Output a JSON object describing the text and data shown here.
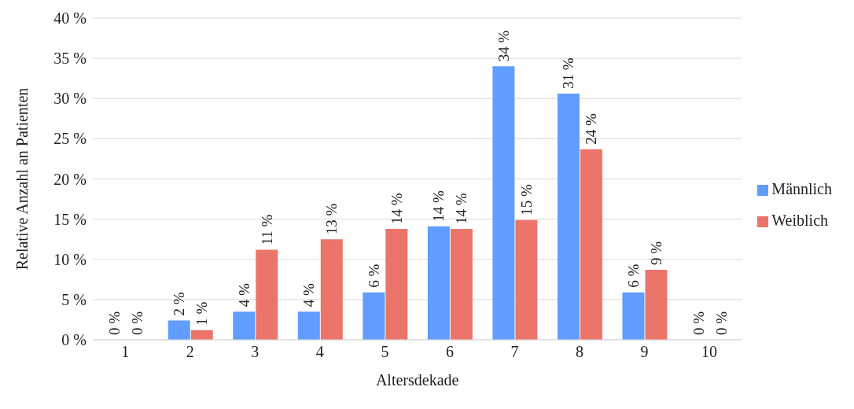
{
  "chart_data": {
    "type": "bar",
    "xlabel": "Altersdekade",
    "ylabel": "Relative Anzahl an Patienten",
    "categories": [
      "1",
      "2",
      "3",
      "4",
      "5",
      "6",
      "7",
      "8",
      "9",
      "10"
    ],
    "series": [
      {
        "name": "Männlich",
        "color": "#619cff",
        "values": [
          0,
          2.4,
          3.5,
          3.5,
          5.9,
          14.1,
          34.0,
          30.6,
          5.9,
          0
        ],
        "value_labels": [
          "0 %",
          "2 %",
          "4 %",
          "4 %",
          "6 %",
          "14 %",
          "34 %",
          "31 %",
          "6 %",
          "0 %"
        ]
      },
      {
        "name": "Weiblich",
        "color": "#ec756b",
        "values": [
          0,
          1.2,
          11.2,
          12.5,
          13.8,
          13.8,
          14.9,
          23.7,
          8.7,
          0
        ],
        "value_labels": [
          "0 %",
          "1 %",
          "11 %",
          "13 %",
          "14 %",
          "14 %",
          "15 %",
          "24 %",
          "9 %",
          "0 %"
        ]
      }
    ],
    "ylim": [
      0,
      40
    ],
    "yticks": [
      {
        "value": 0,
        "label": "0 %"
      },
      {
        "value": 5,
        "label": "5 %"
      },
      {
        "value": 10,
        "label": "10 %"
      },
      {
        "value": 15,
        "label": "15 %"
      },
      {
        "value": 20,
        "label": "20 %"
      },
      {
        "value": 25,
        "label": "25 %"
      },
      {
        "value": 30,
        "label": "30 %"
      },
      {
        "value": 35,
        "label": "35 %"
      },
      {
        "value": 40,
        "label": "40 %"
      }
    ],
    "grid": "y",
    "legend": "right"
  }
}
